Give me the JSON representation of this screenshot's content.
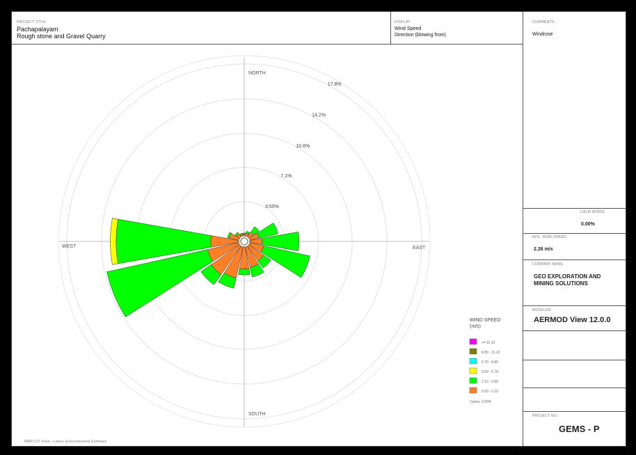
{
  "header": {
    "project_title_label": "PROJECT TITLE",
    "project_title": [
      "Pachapalayam",
      "Rough stone and Gravel Quarry"
    ],
    "display_label": "DISPLAY",
    "display_lines": [
      "Wind Speed",
      "Direction (blowing from)"
    ]
  },
  "side": {
    "comments_label": "COMMENTS",
    "comments": "Windrose",
    "calms_label": "CALM WINDS",
    "calms": "0.00%",
    "avg_speed_label": "AVG. WIND SPEED",
    "avg_speed": "2.26 m/s",
    "company_label": "COMPANY NAME",
    "company": [
      "GEO EXPLORATION AND",
      "MINING SOLUTIONS"
    ],
    "modeler_label": "MODELER",
    "modeler": "AERMOD View 12.0.0",
    "project_no_label": "PROJECT NO.",
    "project_no": "GEMS - P"
  },
  "footer": "WRPLOT View - Lakes Environmental Software",
  "chart_data": {
    "type": "windrose",
    "directions": [
      "N",
      "NNE",
      "NE",
      "ENE",
      "E",
      "ESE",
      "SE",
      "SSE",
      "S",
      "SSW",
      "SW",
      "WSW",
      "W",
      "WNW",
      "NW",
      "NNW"
    ],
    "ring_labels": [
      "3.55%",
      "7.1%",
      "10.6%",
      "14.2%",
      "17.8%"
    ],
    "rings": [
      3.55,
      7.1,
      10.6,
      14.2,
      17.8
    ],
    "compass": {
      "north": "NORTH",
      "south": "SOUTH",
      "east": "EAST",
      "west": "WEST"
    },
    "legend_title": [
      "WIND SPEED",
      "(m/s)"
    ],
    "legend": [
      {
        "label": ">= 11.10",
        "color": "#ff00ff"
      },
      {
        "label": "8.80 - 11.10",
        "color": "#808000"
      },
      {
        "label": "5.70 - 8.80",
        "color": "#00ffff"
      },
      {
        "label": "3.60 - 5.70",
        "color": "#ffff00"
      },
      {
        "label": "2.10 - 3.60",
        "color": "#00ff00"
      },
      {
        "label": "0.50 - 2.10",
        "color": "#ff7f27"
      }
    ],
    "calms_text": "Calms: 0.00%",
    "series": [
      {
        "name": "0.50 - 2.10",
        "color": "#ff7f27",
        "values": [
          0.2,
          0.3,
          0.6,
          1.0,
          1.3,
          1.5,
          1.9,
          2.2,
          2.3,
          3.3,
          3.6,
          3.3,
          2.9,
          1.0,
          0.4,
          0.2
        ]
      },
      {
        "name": "2.10 - 3.60",
        "color": "#00ff00",
        "values": [
          0.1,
          0.2,
          0.7,
          2.0,
          3.8,
          4.9,
          0.9,
          1.0,
          0.6,
          1.1,
          1.3,
          10.7,
          9.8,
          0.2,
          0.2,
          0.1
        ]
      },
      {
        "name": "3.60 - 5.70",
        "color": "#ffff00",
        "values": [
          0,
          0,
          0,
          0,
          0,
          0,
          0,
          0,
          0,
          0,
          0,
          0,
          0.6,
          0,
          0,
          0
        ]
      }
    ]
  }
}
